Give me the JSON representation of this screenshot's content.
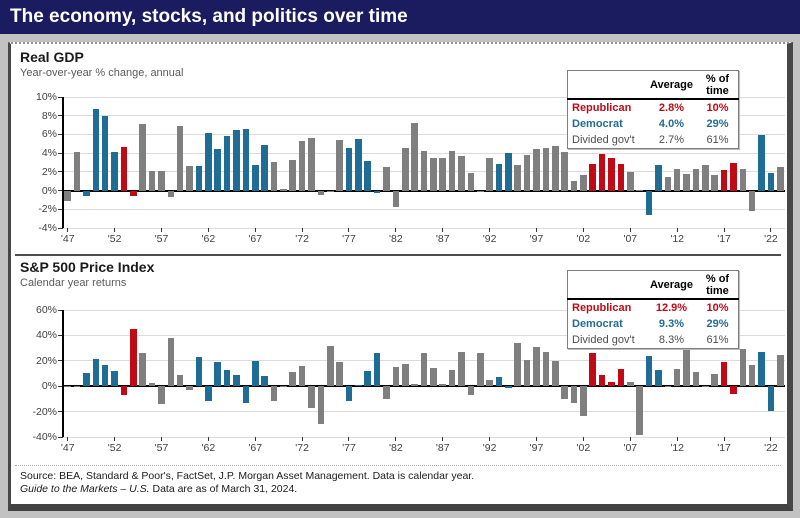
{
  "page": {
    "title": "The economy, stocks, and politics over time"
  },
  "colors": {
    "republican": "#c00b17",
    "democrat": "#1f6d94",
    "divided": "#7f7f7f",
    "header_bg": "#1b1b60",
    "zero_axis": "#000000",
    "gridline": "#dcdcdc"
  },
  "chart_data": [
    {
      "type": "bar",
      "title": "Real GDP",
      "subtitle": "Year-over-year % change, annual",
      "start_year": 1947,
      "values": [
        -1.1,
        4.1,
        -0.6,
        8.7,
        8.0,
        4.1,
        4.7,
        -0.6,
        7.1,
        2.1,
        2.1,
        -0.7,
        6.9,
        2.6,
        2.6,
        6.1,
        4.4,
        5.8,
        6.5,
        6.6,
        2.7,
        4.9,
        3.1,
        0.2,
        3.3,
        5.3,
        5.6,
        -0.5,
        -0.2,
        5.4,
        4.6,
        5.5,
        3.2,
        -0.3,
        2.5,
        -1.8,
        4.6,
        7.2,
        4.2,
        3.5,
        3.5,
        4.2,
        3.7,
        1.9,
        -0.1,
        3.5,
        2.8,
        4.0,
        2.7,
        3.8,
        4.4,
        4.5,
        4.8,
        4.1,
        1.0,
        1.7,
        2.8,
        3.9,
        3.5,
        2.8,
        2.0,
        0.1,
        -2.6,
        2.7,
        1.5,
        2.3,
        1.8,
        2.3,
        2.7,
        1.7,
        2.2,
        2.9,
        2.3,
        -2.2,
        5.9,
        1.9,
        2.5
      ],
      "party": [
        "G",
        "G",
        "D",
        "D",
        "D",
        "D",
        "R",
        "R",
        "G",
        "G",
        "G",
        "G",
        "G",
        "G",
        "D",
        "D",
        "D",
        "D",
        "D",
        "D",
        "D",
        "D",
        "G",
        "G",
        "G",
        "G",
        "G",
        "G",
        "G",
        "G",
        "D",
        "D",
        "D",
        "D",
        "G",
        "G",
        "G",
        "G",
        "G",
        "G",
        "G",
        "G",
        "G",
        "G",
        "G",
        "G",
        "D",
        "D",
        "G",
        "G",
        "G",
        "G",
        "G",
        "G",
        "G",
        "G",
        "R",
        "R",
        "R",
        "R",
        "G",
        "G",
        "D",
        "D",
        "G",
        "G",
        "G",
        "G",
        "G",
        "G",
        "R",
        "R",
        "G",
        "G",
        "D",
        "D",
        "G"
      ],
      "ylim": [
        -4,
        10
      ],
      "ytick_values": [
        10,
        8,
        6,
        4,
        2,
        0,
        -2,
        -4
      ],
      "ytick_labels": [
        "10%",
        "8%",
        "6%",
        "4%",
        "2%",
        "0%",
        "-2%",
        "-4%"
      ],
      "xtick_indices": [
        0,
        5,
        10,
        15,
        20,
        25,
        30,
        35,
        40,
        45,
        50,
        55,
        60,
        65,
        70,
        75
      ],
      "xtick_labels": [
        "'47",
        "'52",
        "'57",
        "'62",
        "'67",
        "'72",
        "'77",
        "'82",
        "'87",
        "'92",
        "'97",
        "'02",
        "'07",
        "'12",
        "'17",
        "'22"
      ],
      "grid": true,
      "legend_position": "top-right",
      "legend": {
        "headers": [
          "Average",
          "% of time"
        ],
        "rows": [
          {
            "label": "Republican",
            "average": "2.8%",
            "pct": "10%",
            "key": "republican"
          },
          {
            "label": "Democrat",
            "average": "4.0%",
            "pct": "29%",
            "key": "democrat"
          },
          {
            "label": "Divided gov't",
            "average": "2.7%",
            "pct": "61%",
            "key": "divided"
          }
        ]
      }
    },
    {
      "type": "bar",
      "title": "S&P 500 Price Index",
      "subtitle": "Calendar year returns",
      "start_year": 1947,
      "values": [
        0.0,
        -0.7,
        10.3,
        21.8,
        16.5,
        11.8,
        -6.6,
        45.0,
        26.4,
        2.6,
        -14.3,
        38.1,
        8.5,
        -3.0,
        23.1,
        -11.8,
        18.9,
        13.0,
        9.1,
        -13.1,
        20.1,
        7.7,
        -11.4,
        0.1,
        10.8,
        15.6,
        -17.4,
        -29.7,
        31.5,
        19.1,
        -11.5,
        1.1,
        12.3,
        25.8,
        -9.7,
        14.8,
        17.3,
        1.4,
        26.3,
        14.6,
        2.0,
        12.4,
        27.3,
        -6.6,
        26.3,
        4.5,
        7.1,
        -1.5,
        34.1,
        20.3,
        31.0,
        26.7,
        19.5,
        -10.1,
        -13.0,
        -23.4,
        26.4,
        9.0,
        3.0,
        13.6,
        3.5,
        -38.5,
        23.5,
        12.8,
        0.0,
        13.4,
        29.6,
        11.4,
        -0.7,
        9.5,
        19.4,
        -6.2,
        28.9,
        16.3,
        26.9,
        -19.4,
        24.2
      ],
      "party": [
        "G",
        "G",
        "D",
        "D",
        "D",
        "D",
        "R",
        "R",
        "G",
        "G",
        "G",
        "G",
        "G",
        "G",
        "D",
        "D",
        "D",
        "D",
        "D",
        "D",
        "D",
        "D",
        "G",
        "G",
        "G",
        "G",
        "G",
        "G",
        "G",
        "G",
        "D",
        "D",
        "D",
        "D",
        "G",
        "G",
        "G",
        "G",
        "G",
        "G",
        "G",
        "G",
        "G",
        "G",
        "G",
        "G",
        "D",
        "D",
        "G",
        "G",
        "G",
        "G",
        "G",
        "G",
        "G",
        "G",
        "R",
        "R",
        "R",
        "R",
        "G",
        "G",
        "D",
        "D",
        "G",
        "G",
        "G",
        "G",
        "G",
        "G",
        "R",
        "R",
        "G",
        "G",
        "D",
        "D",
        "G"
      ],
      "ylim": [
        -40,
        60
      ],
      "ytick_values": [
        60,
        40,
        20,
        0,
        -20,
        -40
      ],
      "ytick_labels": [
        "60%",
        "40%",
        "20%",
        "0%",
        "-20%",
        "-40%"
      ],
      "xtick_indices": [
        0,
        5,
        10,
        15,
        20,
        25,
        30,
        35,
        40,
        45,
        50,
        55,
        60,
        65,
        70,
        75
      ],
      "xtick_labels": [
        "'47",
        "'52",
        "'57",
        "'62",
        "'67",
        "'72",
        "'77",
        "'82",
        "'87",
        "'92",
        "'97",
        "'02",
        "'07",
        "'12",
        "'17",
        "'22"
      ],
      "grid": true,
      "legend_position": "top-right",
      "legend": {
        "headers": [
          "Average",
          "% of time"
        ],
        "rows": [
          {
            "label": "Republican",
            "average": "12.9%",
            "pct": "10%",
            "key": "republican"
          },
          {
            "label": "Democrat",
            "average": "9.3%",
            "pct": "29%",
            "key": "democrat"
          },
          {
            "label": "Divided gov't",
            "average": "8.3%",
            "pct": "61%",
            "key": "divided"
          }
        ]
      }
    }
  ],
  "footer": {
    "line1": "Source: BEA, Standard & Poor's, FactSet, J.P. Morgan Asset Management. Data is calendar year.",
    "line2_italic": "Guide to the Markets – U.S.",
    "line2_rest": " Data are as of March 31, 2024."
  }
}
